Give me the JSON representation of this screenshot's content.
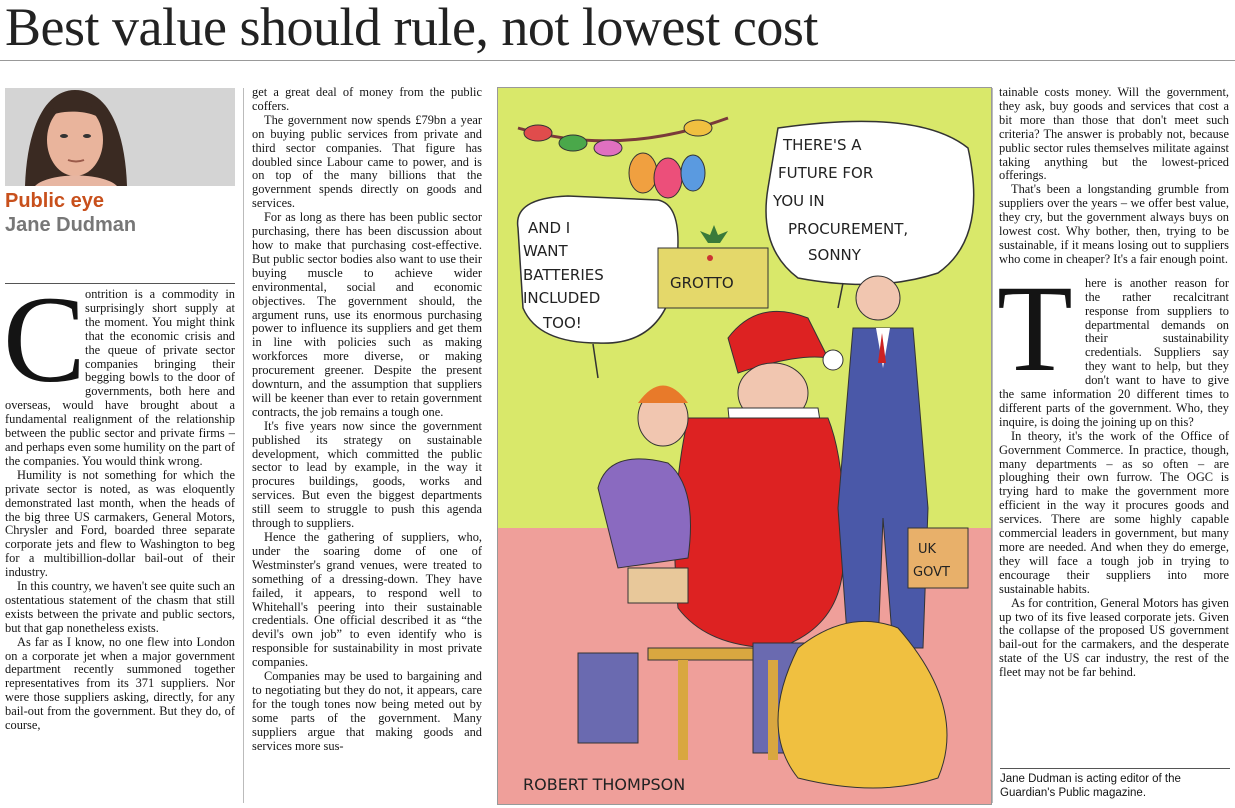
{
  "headline": "Best value should rule, not lowest cost",
  "column": {
    "rubric": "Public eye",
    "author": "Jane Dudman"
  },
  "col1": {
    "dropcap": "C",
    "p1": "ontrition is a commodity in surprisingly short supply at the moment. You might think that the economic crisis and the queue of private sector companies bringing their begging bowls to the door of governments, both here and overseas, would have brought about a fundamental realignment of the relationship between the public sector and private firms – and perhaps even some humility on the part of the companies. You would think wrong.",
    "p2": "Humility is not something for which the private sector is noted, as was eloquently demonstrated last month, when the heads of the big three US carmakers, General Motors, Chrysler and Ford, boarded three separate corporate jets and flew to Washington to beg for a multibillion-dollar bail-out of their industry.",
    "p3": "In this country, we haven't see quite such an ostentatious statement of the chasm that still exists between the private and public sectors, but that gap nonetheless exists.",
    "p4": "As far as I know, no one flew into London on a corporate jet when a major government department recently summoned together representatives from its 371 suppliers. Nor were those suppliers asking, directly, for any bail-out from the government. But they do, of course,"
  },
  "col2": {
    "p1": "get a great deal of money from the public coffers.",
    "p2": "The government now spends £79bn a year on buying public services from private and third sector companies. That figure has doubled since Labour came to power, and is on top of the many billions that the government spends directly on goods and services.",
    "p3": "For as long as there has been public sector purchasing, there has been discussion about how to make that purchasing cost-effective. But public sector bodies also want to use their buying muscle to achieve wider environmental, social and economic objectives. The government should, the argument runs, use its enormous purchasing power to influence its suppliers and get them in line with policies such as making workforces more diverse, or making procurement greener. Despite the present downturn, and the assumption that suppliers will be keener than ever to retain government contracts, the job remains a tough one.",
    "p4": "It's five years now since the government published its strategy on sustainable development, which committed the public sector to lead by example, in the way it procures buildings, goods, works and services. But even the biggest departments still seem to struggle to push this agenda through to suppliers.",
    "p5": "Hence the gathering of suppliers, who, under the soaring dome of one of Westminster's grand venues, were treated to something of a dressing-down. They have failed, it appears, to respond well to Whitehall's peering into their sustainable credentials. One official described it as “the devil's own job” to even identify who is responsible for sustainability in most private companies.",
    "p6": "Companies may be used to bargaining and to negotiating but they do not, it appears, care for the tough tones now being meted out by some parts of the government. Many suppliers argue that making goods and services more sus-"
  },
  "cartoon": {
    "bubble_left": "AND I WANT BATTERIES INCLUDED TOO!",
    "bubble_right": "THERE'S A FUTURE FOR YOU IN PROCUREMENT, SONNY",
    "sign": "GROTTO",
    "bag_label": "UK GOVT",
    "signature": "ROBERT THOMPSON"
  },
  "col4": {
    "p1": "tainable costs money. Will the government, they ask, buy goods and services that cost a bit more than those that don't meet such criteria? The answer is probably not, because public sector rules themselves militate against taking anything but the lowest-priced offerings.",
    "p2": "That's been a longstanding grumble from suppliers over the years – we offer best value, they cry, but the government always buys on lowest cost. Why bother, then, trying to be sustainable, if it means losing out to suppliers who come in cheaper? It's a fair enough point.",
    "dropcap": "T",
    "p3": "here is another reason for the rather recalcitrant response from suppliers to departmental demands on their sustainability credentials. Suppliers say they want to help, but they don't want to have to give the same information 20 different times to different parts of the government. Who, they inquire, is doing the joining up on this?",
    "p4": "In theory, it's the work of the Office of Government Commerce. In practice, though, many departments – as so often – are ploughing their own furrow. The OGC is trying hard to make the government more efficient in the way it procures goods and services. There are some highly capable commercial leaders in government, but many more are needed. And when they do emerge, they will face a tough job in trying to encourage their suppliers into more sustainable habits.",
    "p5": "As for contrition, General Motors has given up two of its five leased corporate jets. Given the collapse of the proposed US government bail-out for the carmakers, and the desperate state of the US car industry, the rest of the fleet may not be far behind."
  },
  "footnote": "Jane Dudman is acting editor of the Guardian's Public magazine."
}
